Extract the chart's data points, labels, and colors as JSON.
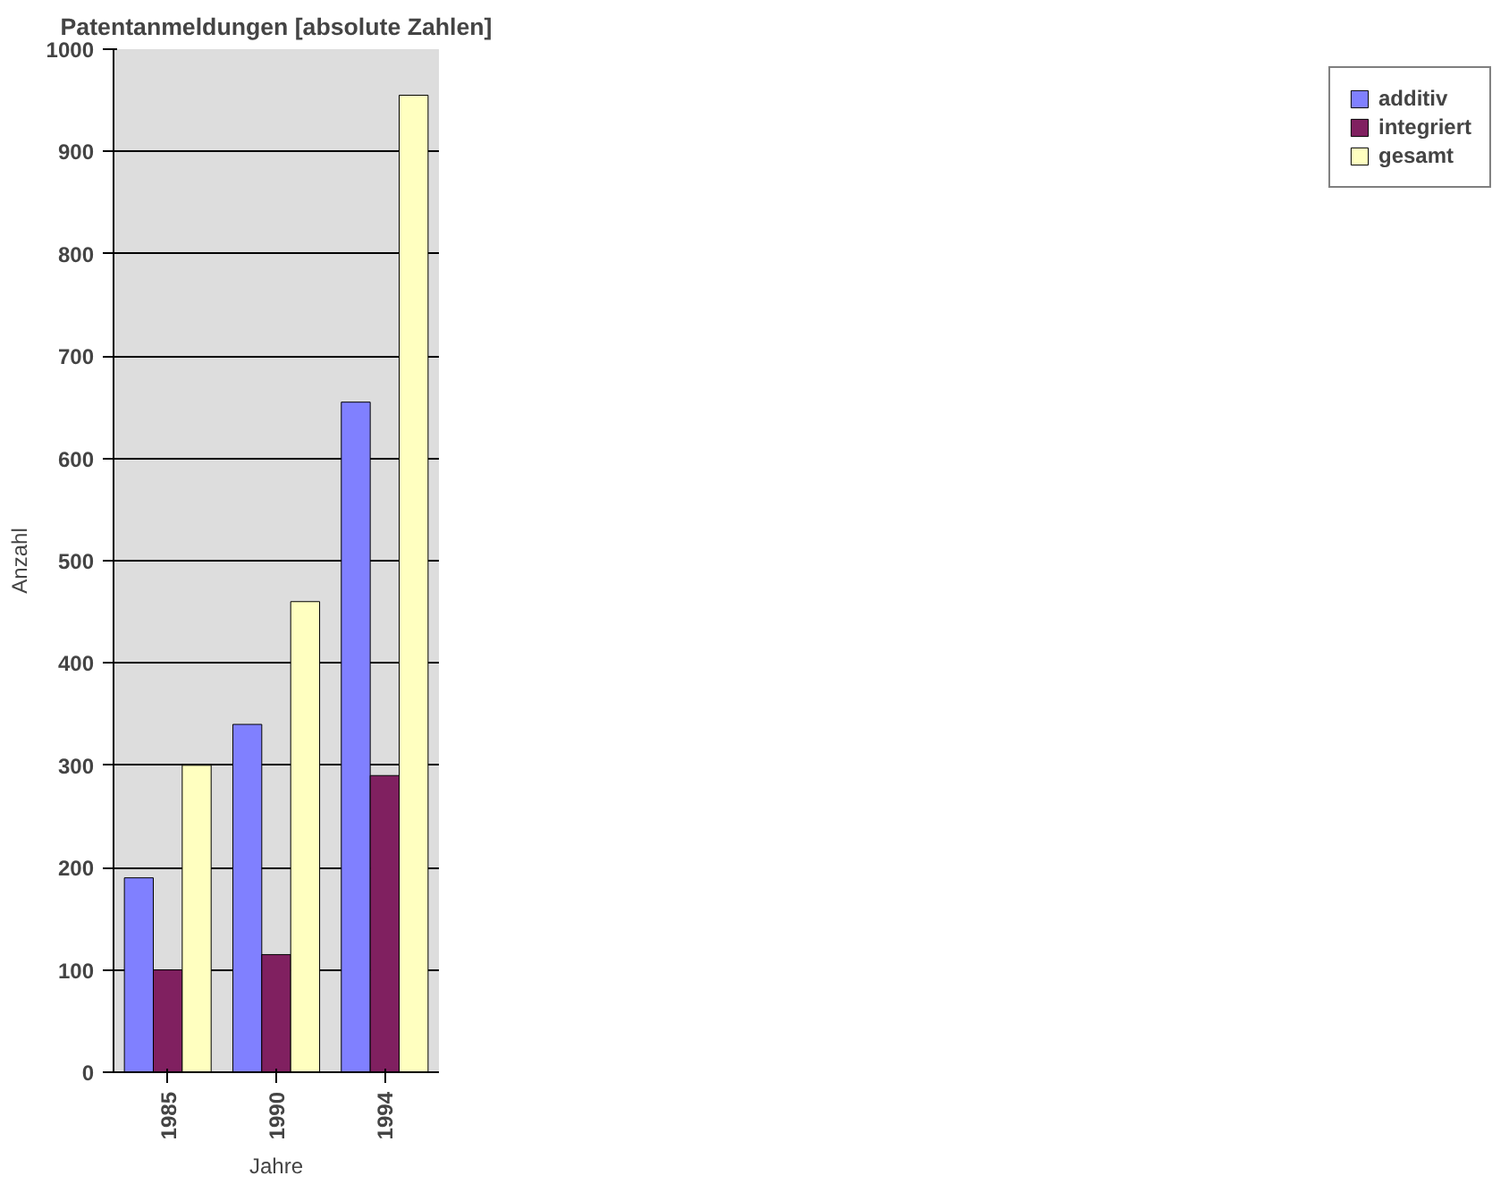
{
  "chart_data": {
    "type": "bar",
    "title": "Patentanmeldungen [absolute Zahlen]",
    "xlabel": "Jahre",
    "ylabel": "Anzahl",
    "categories": [
      "1985",
      "1990",
      "1994"
    ],
    "series": [
      {
        "name": "additiv",
        "color": "#8080ff",
        "values": [
          190,
          340,
          655
        ]
      },
      {
        "name": "integriert",
        "color": "#802060",
        "values": [
          100,
          115,
          290
        ]
      },
      {
        "name": "gesamt",
        "color": "#ffffc0",
        "values": [
          300,
          460,
          955
        ]
      }
    ],
    "ylim": [
      0,
      1000
    ],
    "yticks": [
      0,
      100,
      200,
      300,
      400,
      500,
      600,
      700,
      800,
      900,
      1000
    ],
    "grid": "y",
    "legend": "right"
  }
}
